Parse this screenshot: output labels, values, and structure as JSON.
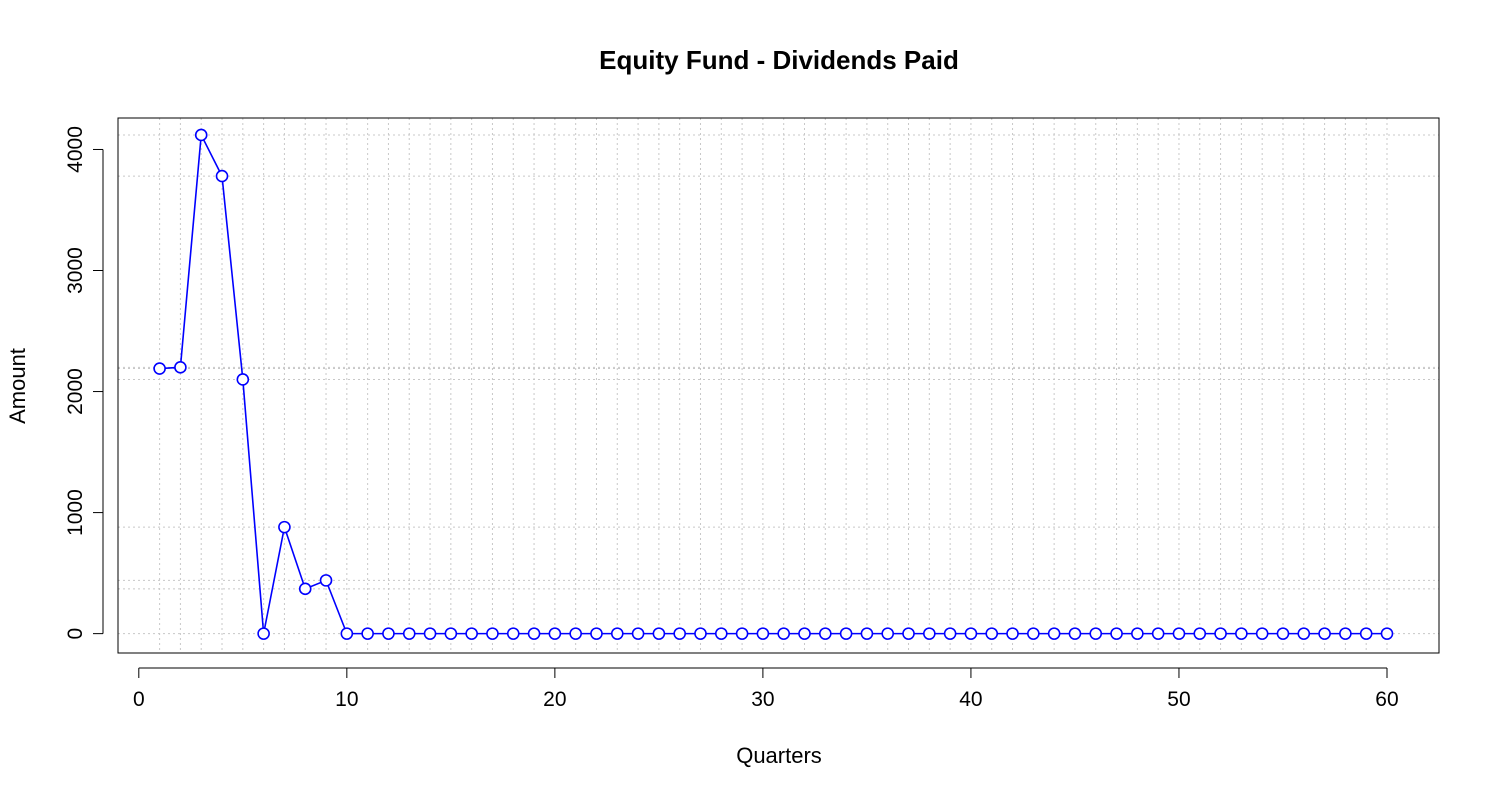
{
  "chart_data": {
    "type": "line",
    "title": "Equity Fund - Dividends Paid",
    "xlabel": "Quarters",
    "ylabel": "Amount",
    "xlim": [
      -1,
      62.5
    ],
    "ylim": [
      -160,
      4260
    ],
    "x_ticks": [
      0,
      10,
      20,
      30,
      40,
      50,
      60
    ],
    "y_ticks": [
      0,
      1000,
      2000,
      3000,
      4000
    ],
    "grid": true,
    "markers": "open-circle",
    "colors": {
      "series": "#0000ff",
      "grid": "#c8c8c8",
      "axis": "#000000"
    },
    "series": [
      {
        "x": [
          1,
          2,
          3,
          4,
          5,
          6,
          7,
          8,
          9,
          10,
          11,
          12,
          13,
          14,
          15,
          16,
          17,
          18,
          19,
          20,
          21,
          22,
          23,
          24,
          25,
          26,
          27,
          28,
          29,
          30,
          31,
          32,
          33,
          34,
          35,
          36,
          37,
          38,
          39,
          40,
          41,
          42,
          43,
          44,
          45,
          46,
          47,
          48,
          49,
          50,
          51,
          52,
          53,
          54,
          55,
          56,
          57,
          58,
          59,
          60
        ],
        "values": [
          2190,
          2200,
          4120,
          3780,
          2100,
          0,
          880,
          370,
          440,
          0,
          0,
          0,
          0,
          0,
          0,
          0,
          0,
          0,
          0,
          0,
          0,
          0,
          0,
          0,
          0,
          0,
          0,
          0,
          0,
          0,
          0,
          0,
          0,
          0,
          0,
          0,
          0,
          0,
          0,
          0,
          0,
          0,
          0,
          0,
          0,
          0,
          0,
          0,
          0,
          0,
          0,
          0,
          0,
          0,
          0,
          0,
          0,
          0,
          0,
          0
        ]
      }
    ]
  }
}
